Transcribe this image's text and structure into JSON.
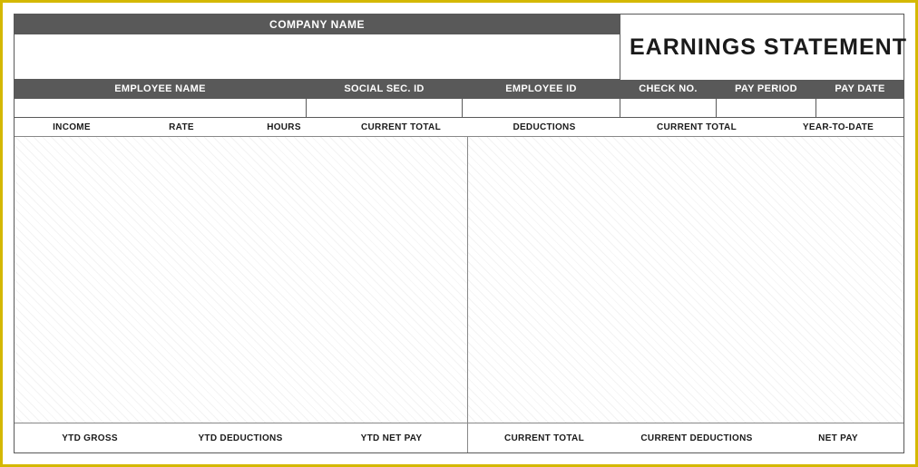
{
  "title": "EARNINGS STATEMENT",
  "company": {
    "label": "COMPANY NAME",
    "value": ""
  },
  "headers": {
    "employee_name": "EMPLOYEE NAME",
    "ssn": "SOCIAL SEC. ID",
    "employee_id": "EMPLOYEE ID",
    "check_no": "CHECK NO.",
    "pay_period": "PAY PERIOD",
    "pay_date": "PAY DATE"
  },
  "values": {
    "employee_name": "",
    "ssn": "",
    "employee_id": "",
    "check_no": "",
    "pay_period": "",
    "pay_date": ""
  },
  "columns": {
    "income": "INCOME",
    "rate": "RATE",
    "hours": "HOURS",
    "current_total_left": "CURRENT TOTAL",
    "deductions": "DEDUCTIONS",
    "current_total_right": "CURRENT TOTAL",
    "year_to_date": "YEAR-TO-DATE"
  },
  "footer": {
    "ytd_gross": "YTD GROSS",
    "ytd_deductions": "YTD DEDUCTIONS",
    "ytd_net_pay": "YTD NET PAY",
    "current_total": "CURRENT TOTAL",
    "current_deductions": "CURRENT DEDUCTIONS",
    "net_pay": "NET PAY"
  },
  "style": {
    "border_color": "#d4b800",
    "header_bg": "#595959",
    "header_fg": "#ffffff",
    "grid_color": "#888888",
    "hatch_light": "#ffffff",
    "hatch_dark": "#f3f3f3",
    "title_fontsize": 25,
    "label_fontsize": 11,
    "small_label_fontsize": 10
  }
}
